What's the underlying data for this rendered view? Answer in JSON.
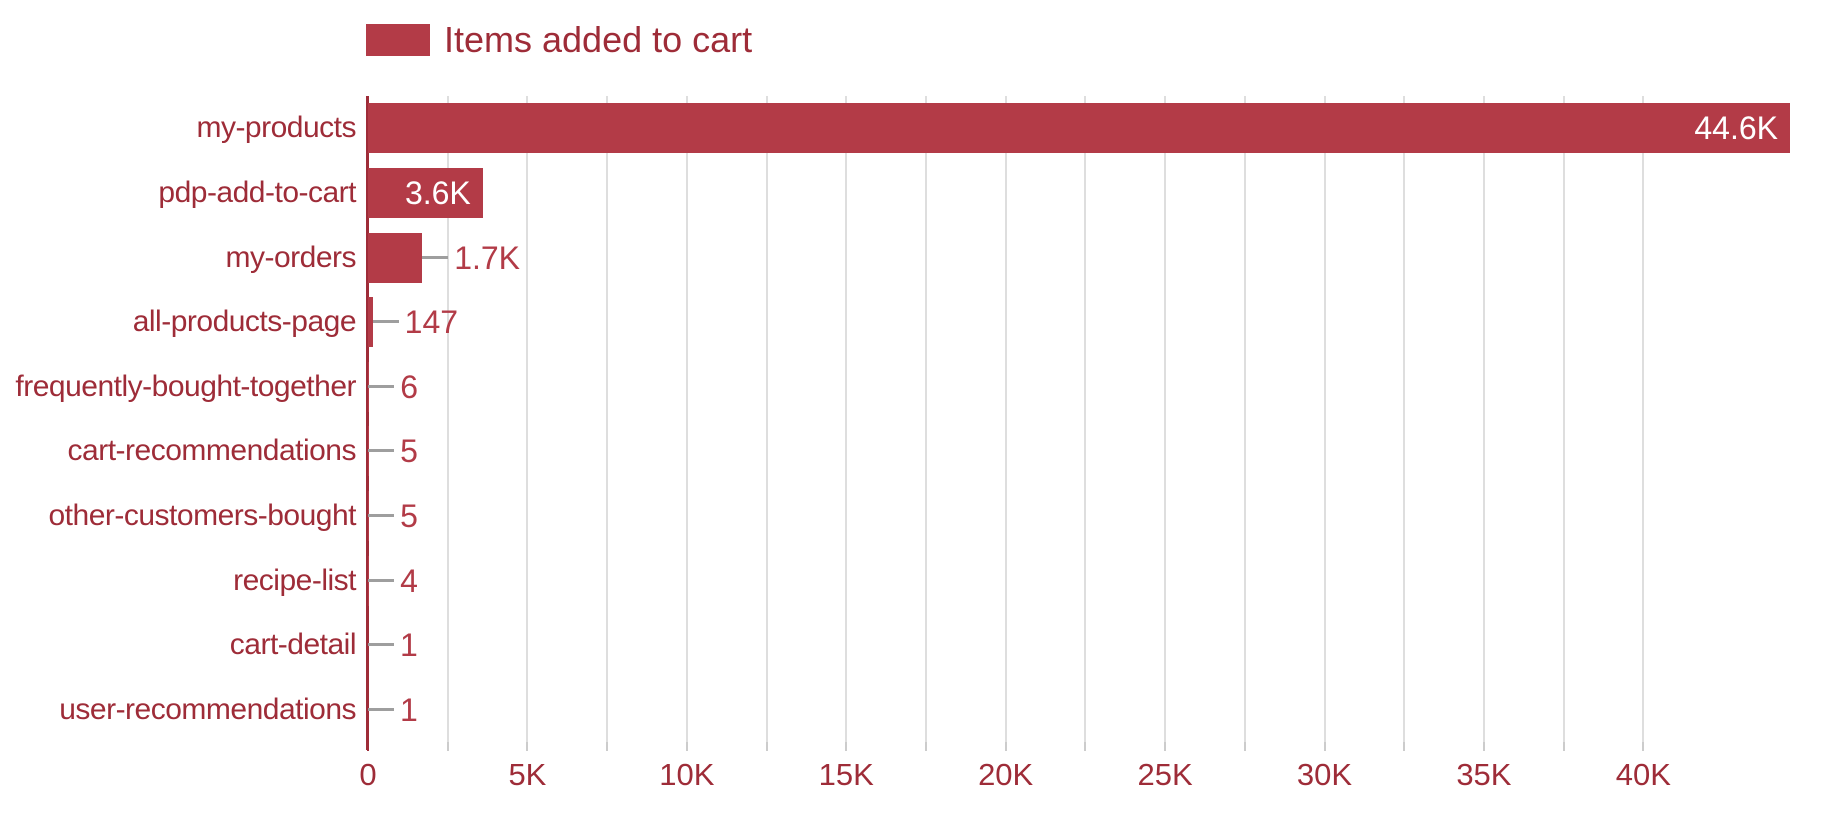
{
  "legend": {
    "label": "Items added to cart"
  },
  "chart_data": {
    "type": "bar",
    "orientation": "horizontal",
    "legend_label": "Items added to cart",
    "legend_position": "top-left",
    "categories": [
      "my-products",
      "pdp-add-to-cart",
      "my-orders",
      "all-products-page",
      "frequently-bought-together",
      "cart-recommendations",
      "other-customers-bought",
      "recipe-list",
      "cart-detail",
      "user-recommendations"
    ],
    "values": [
      44600,
      3600,
      1700,
      147,
      6,
      5,
      5,
      4,
      1,
      1
    ],
    "value_labels": [
      "44.6K",
      "3.6K",
      "1.7K",
      "147",
      "6",
      "5",
      "5",
      "4",
      "1",
      "1"
    ],
    "xlim": [
      0,
      44600
    ],
    "x_tick_labels": [
      "0",
      "5K",
      "10K",
      "15K",
      "20K",
      "25K",
      "30K",
      "35K",
      "40K"
    ],
    "x_tick_interval": 5000,
    "x_gridline_interval": 2500,
    "grid": "vertical-on",
    "colors": {
      "bar": "#b33b47",
      "axis_text": "#9e2c38",
      "value_text": "#b23b47",
      "value_text_inside": "#ffffff",
      "axis_line": "#9e2c38",
      "gridline": "#dedede",
      "tick": "#cccccc",
      "connector": "#9e9e9e",
      "background": "#ffffff"
    }
  }
}
